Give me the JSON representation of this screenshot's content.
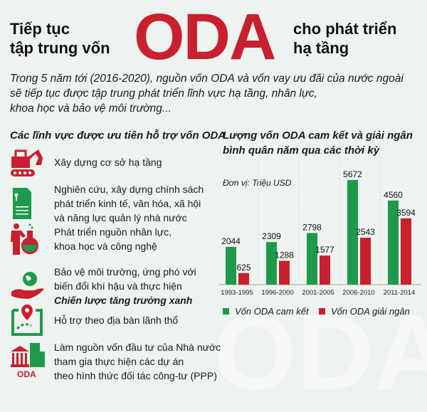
{
  "header": {
    "title_left": [
      "Tiếp tục",
      "tập trung vốn"
    ],
    "title_big": "ODA",
    "title_right": [
      "cho phát triển",
      "hạ tầng"
    ],
    "intro": [
      "Trong 5 năm tới (2016-2020), nguồn vốn ODA và vốn vay ưu đãi của nước ngoài",
      "sẽ tiếp tục được tập trung phát triển lĩnh vực hạ tầng, nhân lực,",
      "khoa học và bảo vệ môi trường..."
    ]
  },
  "colors": {
    "red": "#c8202f",
    "green": "#1f9a4a",
    "background": "#eef3ef"
  },
  "priorities": {
    "heading": "Các lĩnh vực được ưu tiên hỗ trợ vốn ODA",
    "items": [
      {
        "icon": "excavator-icon",
        "lines": [
          "Xây dựng cơ sở hạ tầng"
        ]
      },
      {
        "icon": "document-icon",
        "lines": [
          "Nghiên cứu, xây dựng chính sách",
          "phát triển kinh tế, văn hóa, xã hội",
          "và năng lực quản lý nhà nước"
        ]
      },
      {
        "icon": "scientist-flask-icon",
        "lines": [
          "Phát triển nguồn nhân lực,",
          "khoa học và công nghệ"
        ]
      },
      {
        "icon": "hand-globe-icon",
        "lines": [
          "Bảo vệ môi trường, ứng phó với",
          "biến đổi khí hậu và thực hiện"
        ],
        "emph": "Chiến lược tăng trưởng xanh"
      },
      {
        "icon": "map-pin-icon",
        "lines": [
          "Hỗ trợ theo địa bàn lãnh thổ"
        ]
      },
      {
        "icon": "bank-building-icon",
        "icon_label": "ODA",
        "lines": [
          "Làm nguồn vốn đầu tư của Nhà nước",
          "tham gia thực hiện các dự án",
          "theo hình thức đối tác công-tư (PPP)"
        ]
      }
    ]
  },
  "chart_data": {
    "type": "bar",
    "title": "Lượng vốn ODA cam kết và giải ngân bình quân năm qua các thời kỳ",
    "title_lines": [
      "Lượng vốn ODA cam kết và giải ngân",
      "bình quân năm qua các thời kỳ"
    ],
    "unit": "Đơn vị: Triệu USD",
    "categories": [
      "1993-1995",
      "1996-2000",
      "2001-2005",
      "2006-2010",
      "2011-2014"
    ],
    "series": [
      {
        "name": "Vốn ODA cam kết",
        "color": "#1f9a4a",
        "values": [
          2044,
          2309,
          2798,
          5672,
          4560
        ]
      },
      {
        "name": "Vốn ODA giải ngân",
        "color": "#c8202f",
        "values": [
          625,
          1288,
          1577,
          2543,
          3594
        ]
      }
    ],
    "ylim": [
      0,
      6000
    ],
    "grid": false,
    "legend": "bottom",
    "data_labels": true
  }
}
